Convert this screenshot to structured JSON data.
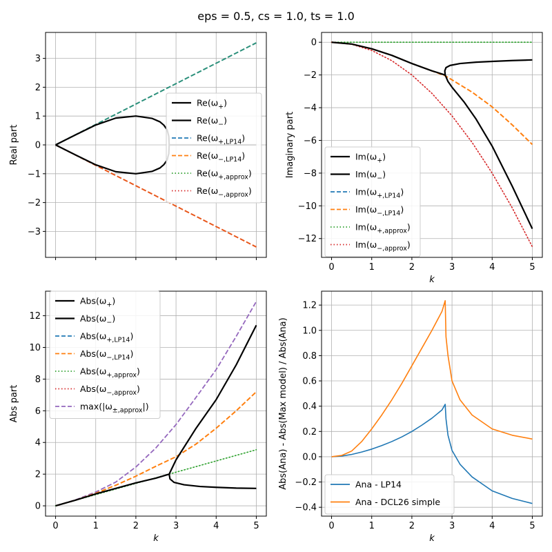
{
  "suptitle": "eps = 0.5, cs = 1.0, ts = 1.0",
  "colors": {
    "black": "#000000",
    "blue": "#1f77b4",
    "orange": "#ff7f0e",
    "green": "#2ca02c",
    "red": "#d62728",
    "purple": "#9467bd",
    "teal": "#2a8f7a",
    "redorange": "#e8561a",
    "grid": "#b0b0b0"
  },
  "chart_data": [
    {
      "type": "line",
      "xlabel": "",
      "ylabel": "Real part",
      "xlim": [
        -0.25,
        5.25
      ],
      "ylim": [
        -3.9,
        3.9
      ],
      "xticks": [
        0,
        1,
        2,
        3,
        4,
        5
      ],
      "yticks": [
        -3,
        -2,
        -1,
        0,
        1,
        2,
        3
      ],
      "grid": true,
      "legend_loc": "center-right",
      "legend": [
        {
          "label": "Re(ω₊)",
          "color": "black",
          "style": "solid"
        },
        {
          "label": "Re(ω₋)",
          "color": "black",
          "style": "solid"
        },
        {
          "label": "Re(ω₊,LP14)",
          "color": "blue",
          "style": "dashed"
        },
        {
          "label": "Re(ω₋,LP14)",
          "color": "orange",
          "style": "dashed"
        },
        {
          "label": "Re(ω₊,approx)",
          "color": "green",
          "style": "dotted"
        },
        {
          "label": "Re(ω₋,approx)",
          "color": "red",
          "style": "dotted"
        }
      ],
      "series": [
        {
          "color": "teal",
          "style": "dashed",
          "width": 2,
          "x": [
            0,
            5
          ],
          "y": [
            0,
            3.54
          ]
        },
        {
          "color": "redorange",
          "style": "dashed",
          "width": 2,
          "x": [
            0,
            5
          ],
          "y": [
            0,
            -3.54
          ]
        },
        {
          "color": "black",
          "style": "solid",
          "width": 2.2,
          "x": [
            0,
            0.2,
            0.5,
            1.0,
            1.5,
            2.0,
            2.4,
            2.6,
            2.7,
            2.78,
            2.82,
            2.83,
            2.82,
            2.78,
            2.7,
            2.6,
            2.4,
            2.0,
            1.5,
            1.0,
            0.5,
            0.2,
            0
          ],
          "y": [
            0,
            0.14,
            0.35,
            0.69,
            0.93,
            1.0,
            0.92,
            0.8,
            0.68,
            0.52,
            0.3,
            0,
            -0.3,
            -0.52,
            -0.68,
            -0.8,
            -0.92,
            -1.0,
            -0.93,
            -0.69,
            -0.35,
            -0.14,
            0
          ]
        },
        {
          "color": "black",
          "style": "solid",
          "width": 2.2,
          "x": [
            2.83,
            5
          ],
          "y": [
            0,
            0
          ]
        }
      ]
    },
    {
      "type": "line",
      "xlabel": "k",
      "ylabel": "Imaginary part",
      "xlim": [
        -0.25,
        5.25
      ],
      "ylim": [
        -13.15,
        0.6
      ],
      "xticks": [
        0,
        1,
        2,
        3,
        4,
        5
      ],
      "yticks": [
        -12,
        -10,
        -8,
        -6,
        -4,
        -2,
        0
      ],
      "grid": true,
      "legend_loc": "lower-left",
      "legend": [
        {
          "label": "Im(ω₊)",
          "color": "black",
          "style": "solid"
        },
        {
          "label": "Im(ω₋)",
          "color": "black",
          "style": "solid"
        },
        {
          "label": "Im(ω₊,LP14)",
          "color": "blue",
          "style": "dashed"
        },
        {
          "label": "Im(ω₋,LP14)",
          "color": "orange",
          "style": "dashed"
        },
        {
          "label": "Im(ω₊,approx)",
          "color": "green",
          "style": "dotted"
        },
        {
          "label": "Im(ω₋,approx)",
          "color": "red",
          "style": "dotted"
        }
      ],
      "series": [
        {
          "color": "green",
          "style": "dotted",
          "width": 1.6,
          "x": [
            0,
            5
          ],
          "y": [
            0,
            0
          ]
        },
        {
          "color": "red",
          "style": "dotted",
          "width": 1.6,
          "x": [
            0,
            0.5,
            1.0,
            1.5,
            2.0,
            2.5,
            3.0,
            3.5,
            4.0,
            4.5,
            5.0
          ],
          "y": [
            0,
            -0.125,
            -0.5,
            -1.125,
            -2.0,
            -3.125,
            -4.5,
            -6.125,
            -8.0,
            -10.125,
            -12.5
          ]
        },
        {
          "color": "orange",
          "style": "dashed",
          "width": 2,
          "x": [
            0,
            0.5,
            1.0,
            1.5,
            2.0,
            2.5,
            2.83,
            3.0,
            3.5,
            4.0,
            4.5,
            5.0
          ],
          "y": [
            0,
            -0.11,
            -0.4,
            -0.8,
            -1.3,
            -1.75,
            -2.05,
            -2.3,
            -3.05,
            -3.95,
            -5.05,
            -6.25
          ]
        },
        {
          "color": "black",
          "style": "solid",
          "width": 2.2,
          "x": [
            0,
            0.5,
            1.0,
            1.5,
            2.0,
            2.5,
            2.7,
            2.8,
            2.83,
            2.82,
            2.85,
            2.95,
            3.2,
            3.6,
            4.0,
            4.5,
            5.0
          ],
          "y": [
            0,
            -0.11,
            -0.4,
            -0.8,
            -1.3,
            -1.75,
            -1.9,
            -1.98,
            -2.0,
            -1.75,
            -1.55,
            -1.42,
            -1.3,
            -1.22,
            -1.17,
            -1.12,
            -1.08
          ]
        },
        {
          "color": "black",
          "style": "solid",
          "width": 2.2,
          "x": [
            2.83,
            2.9,
            3.0,
            3.3,
            3.6,
            4.0,
            4.5,
            5.0
          ],
          "y": [
            -2.0,
            -2.4,
            -2.75,
            -3.65,
            -4.7,
            -6.35,
            -8.8,
            -11.4
          ]
        }
      ]
    },
    {
      "type": "line",
      "xlabel": "k",
      "ylabel": "Abs part",
      "xlim": [
        -0.25,
        5.25
      ],
      "ylim": [
        -0.65,
        13.55
      ],
      "xticks": [
        0,
        1,
        2,
        3,
        4,
        5
      ],
      "yticks": [
        0,
        2,
        4,
        6,
        8,
        10,
        12
      ],
      "grid": true,
      "legend_loc": "upper-left",
      "legend": [
        {
          "label": "Abs(ω₊)",
          "color": "black",
          "style": "solid"
        },
        {
          "label": "Abs(ω₋)",
          "color": "black",
          "style": "solid"
        },
        {
          "label": "Abs(ω₊,LP14)",
          "color": "blue",
          "style": "dashed"
        },
        {
          "label": "Abs(ω₋,LP14)",
          "color": "orange",
          "style": "dashed"
        },
        {
          "label": "Abs(ω₊,approx)",
          "color": "green",
          "style": "dotted"
        },
        {
          "label": "Abs(ω₋,approx)",
          "color": "red",
          "style": "dotted"
        },
        {
          "label": "max(|ω±,approx|)",
          "color": "purple",
          "style": "dashed"
        }
      ],
      "series": [
        {
          "color": "purple",
          "style": "dashed",
          "width": 1.8,
          "x": [
            0,
            0.5,
            1.0,
            1.5,
            2.0,
            2.5,
            3.0,
            3.5,
            4.0,
            4.5,
            5.0
          ],
          "y": [
            0,
            0.38,
            0.87,
            1.5,
            2.45,
            3.66,
            5.13,
            6.85,
            8.6,
            10.7,
            12.9
          ]
        },
        {
          "color": "orange",
          "style": "dashed",
          "width": 2,
          "x": [
            0,
            0.5,
            1.0,
            1.5,
            2.0,
            2.5,
            3.0,
            3.5,
            4.0,
            4.5,
            5.0
          ],
          "y": [
            0,
            0.36,
            0.79,
            1.3,
            1.87,
            2.5,
            3.1,
            3.9,
            4.9,
            6.0,
            7.2
          ]
        },
        {
          "color": "green",
          "style": "dotted",
          "width": 1.6,
          "x": [
            0,
            5
          ],
          "y": [
            0,
            3.54
          ]
        },
        {
          "color": "black",
          "style": "solid",
          "width": 2.2,
          "x": [
            0,
            0.5,
            1.0,
            1.5,
            2.0,
            2.5,
            2.83,
            3.0,
            3.2,
            3.5,
            4.0,
            4.5,
            5.0
          ],
          "y": [
            0,
            0.36,
            0.75,
            1.1,
            1.45,
            1.75,
            2.0,
            2.9,
            3.7,
            4.9,
            6.7,
            8.9,
            11.4
          ]
        },
        {
          "color": "black",
          "style": "solid",
          "width": 2.2,
          "x": [
            2.83,
            2.85,
            2.95,
            3.2,
            3.6,
            4.0,
            4.5,
            5.0
          ],
          "y": [
            2.0,
            1.7,
            1.48,
            1.33,
            1.22,
            1.17,
            1.12,
            1.1
          ]
        }
      ]
    },
    {
      "type": "line",
      "xlabel": "k",
      "ylabel": "Abs(Ana) - Abs(Max model) / Abs(Ana)",
      "xlim": [
        -0.25,
        5.25
      ],
      "ylim": [
        -0.47,
        1.31
      ],
      "xticks": [
        0,
        1,
        2,
        3,
        4,
        5
      ],
      "yticks": [
        -0.4,
        -0.2,
        0.0,
        0.2,
        0.4,
        0.6,
        0.8,
        1.0,
        1.2
      ],
      "ytick_labels": [
        "−0.4",
        "−0.2",
        "0.0",
        "0.2",
        "0.4",
        "0.6",
        "0.8",
        "1.0",
        "1.2"
      ],
      "grid": true,
      "legend_loc": "lower-left",
      "legend": [
        {
          "label": "Ana - LP14",
          "color": "blue",
          "style": "solid"
        },
        {
          "label": "Ana - DCL26 simple",
          "color": "orange",
          "style": "solid"
        }
      ],
      "series": [
        {
          "color": "blue",
          "style": "solid",
          "width": 1.6,
          "x": [
            0,
            0.25,
            0.5,
            0.75,
            1.0,
            1.25,
            1.5,
            1.75,
            2.0,
            2.25,
            2.5,
            2.75,
            2.83,
            2.85,
            2.9,
            3.0,
            3.2,
            3.5,
            4.0,
            4.5,
            5.0
          ],
          "y": [
            0,
            0.005,
            0.018,
            0.037,
            0.06,
            0.088,
            0.12,
            0.157,
            0.2,
            0.25,
            0.305,
            0.37,
            0.415,
            0.3,
            0.17,
            0.05,
            -0.06,
            -0.16,
            -0.27,
            -0.33,
            -0.37
          ]
        },
        {
          "color": "orange",
          "style": "solid",
          "width": 1.6,
          "x": [
            0,
            0.25,
            0.5,
            0.75,
            1.0,
            1.25,
            1.5,
            1.75,
            2.0,
            2.25,
            2.5,
            2.75,
            2.83,
            2.85,
            2.9,
            3.0,
            3.2,
            3.5,
            4.0,
            4.5,
            5.0
          ],
          "y": [
            0,
            0.01,
            0.045,
            0.12,
            0.22,
            0.33,
            0.45,
            0.58,
            0.72,
            0.86,
            1.0,
            1.15,
            1.235,
            0.95,
            0.8,
            0.6,
            0.45,
            0.33,
            0.22,
            0.17,
            0.14
          ]
        }
      ]
    }
  ]
}
